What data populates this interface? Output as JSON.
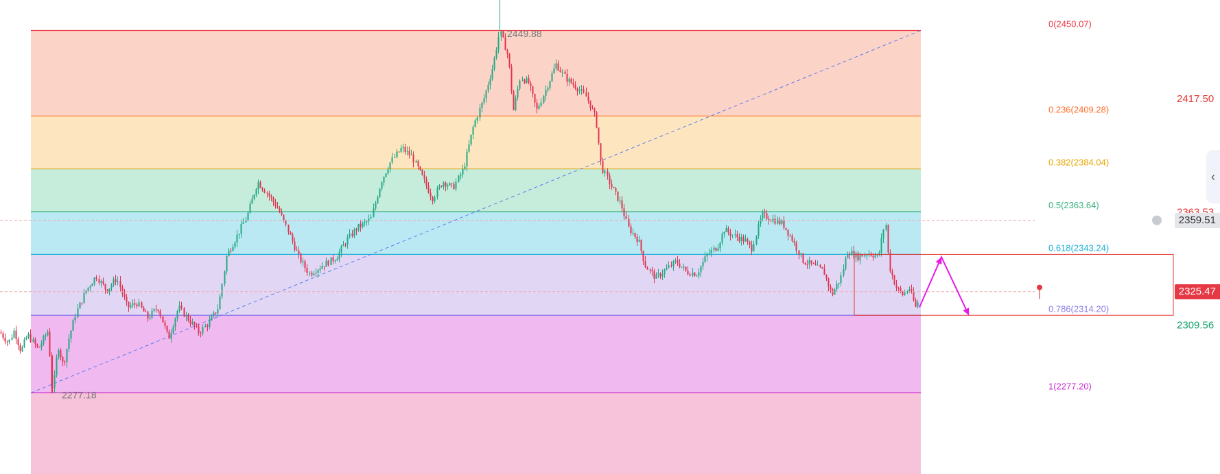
{
  "chart_data": {
    "type": "candlestick",
    "ylim": [
      2266.3,
      2462.8
    ],
    "fib_levels": [
      {
        "ratio_label": "0",
        "price": 2450.07,
        "label": "0(2450.07)",
        "line": "#f23645",
        "fill": "#fcd3c7",
        "text": "#f23645"
      },
      {
        "ratio_label": "0.236",
        "price": 2409.28,
        "label": "0.236(2409.28)",
        "line": "#ff7b29",
        "fill": "#fde6bf",
        "text": "#ff6d2a"
      },
      {
        "ratio_label": "0.382",
        "price": 2384.04,
        "label": "0.382(2384.04)",
        "line": "#e0a919",
        "fill": "#c6ecdb",
        "text": "#e6a700"
      },
      {
        "ratio_label": "0.5",
        "price": 2363.64,
        "label": "0.5(2363.64)",
        "line": "#3bb27d",
        "fill": "#bbe9f3",
        "text": "#3bb27d"
      },
      {
        "ratio_label": "0.618",
        "price": 2343.24,
        "label": "0.618(2343.24)",
        "line": "#22b3d5",
        "fill": "#e1d6f4",
        "text": "#1fb1d6"
      },
      {
        "ratio_label": "0.786",
        "price": 2314.2,
        "label": "0.786(2314.20)",
        "line": "#7f72e8",
        "fill": "#f0b9ef",
        "text": "#8c7fe6"
      },
      {
        "ratio_label": "1",
        "price": 2277.2,
        "label": "1(2277.20)",
        "line": "#cc2fd0",
        "fill": "#f6c3da",
        "text": "#cc2fd0"
      }
    ],
    "high_label": "2449.88",
    "low_label": "2277.18",
    "high_price": 2449.88,
    "low_price": 2277.18,
    "trend_line": {
      "from_price": 2277.2,
      "to_price": 2450.07,
      "color": "#5b7cf0"
    },
    "candle_colors": {
      "up": "#22a884",
      "down": "#e0344f"
    },
    "close_path": [
      [
        0,
        2306
      ],
      [
        12,
        2301
      ],
      [
        20,
        2307
      ],
      [
        30,
        2297
      ],
      [
        40,
        2305
      ],
      [
        55,
        2298
      ],
      [
        70,
        2307
      ],
      [
        76,
        2277.18
      ],
      [
        84,
        2300
      ],
      [
        92,
        2290
      ],
      [
        100,
        2303
      ],
      [
        110,
        2315
      ],
      [
        125,
        2326
      ],
      [
        140,
        2333
      ],
      [
        155,
        2326
      ],
      [
        170,
        2332
      ],
      [
        185,
        2318
      ],
      [
        200,
        2320
      ],
      [
        215,
        2313
      ],
      [
        230,
        2318
      ],
      [
        245,
        2303
      ],
      [
        260,
        2318
      ],
      [
        275,
        2312
      ],
      [
        290,
        2306
      ],
      [
        305,
        2311
      ],
      [
        318,
        2318
      ],
      [
        330,
        2343
      ],
      [
        345,
        2352
      ],
      [
        360,
        2362
      ],
      [
        375,
        2378
      ],
      [
        390,
        2372
      ],
      [
        405,
        2365
      ],
      [
        420,
        2354
      ],
      [
        435,
        2342
      ],
      [
        450,
        2334
      ],
      [
        470,
        2338
      ],
      [
        490,
        2342
      ],
      [
        505,
        2350
      ],
      [
        520,
        2356
      ],
      [
        540,
        2360
      ],
      [
        555,
        2378
      ],
      [
        568,
        2387
      ],
      [
        585,
        2394
      ],
      [
        600,
        2390
      ],
      [
        615,
        2380
      ],
      [
        630,
        2370
      ],
      [
        645,
        2378
      ],
      [
        660,
        2375
      ],
      [
        675,
        2384
      ],
      [
        690,
        2405
      ],
      [
        705,
        2418
      ],
      [
        718,
        2433
      ],
      [
        728,
        2449.88
      ],
      [
        740,
        2438
      ],
      [
        748,
        2412
      ],
      [
        758,
        2428
      ],
      [
        770,
        2425
      ],
      [
        782,
        2412
      ],
      [
        795,
        2422
      ],
      [
        810,
        2434
      ],
      [
        825,
        2427
      ],
      [
        840,
        2423
      ],
      [
        855,
        2418
      ],
      [
        868,
        2408
      ],
      [
        876,
        2385
      ],
      [
        890,
        2376
      ],
      [
        905,
        2367
      ],
      [
        915,
        2356
      ],
      [
        930,
        2350
      ],
      [
        940,
        2338
      ],
      [
        955,
        2332
      ],
      [
        970,
        2336
      ],
      [
        985,
        2340
      ],
      [
        1000,
        2335
      ],
      [
        1015,
        2334
      ],
      [
        1030,
        2343
      ],
      [
        1045,
        2347
      ],
      [
        1055,
        2355
      ],
      [
        1070,
        2352
      ],
      [
        1085,
        2350
      ],
      [
        1095,
        2346
      ],
      [
        1110,
        2362
      ],
      [
        1125,
        2360
      ],
      [
        1140,
        2358
      ],
      [
        1155,
        2350
      ],
      [
        1170,
        2340
      ],
      [
        1185,
        2338
      ],
      [
        1200,
        2335
      ],
      [
        1212,
        2324
      ],
      [
        1225,
        2332
      ],
      [
        1235,
        2345
      ],
      [
        1250,
        2342
      ],
      [
        1265,
        2344
      ],
      [
        1280,
        2342
      ],
      [
        1290,
        2360
      ],
      [
        1295,
        2338
      ],
      [
        1305,
        2328
      ],
      [
        1315,
        2324
      ],
      [
        1325,
        2327
      ],
      [
        1335,
        2317
      ],
      [
        1340,
        2325.47
      ]
    ],
    "projection": {
      "color": "#e91ae5",
      "points": [
        [
          1340,
          2318
        ],
        [
          1372,
          2342
        ],
        [
          1412,
          2314.2
        ]
      ]
    },
    "target_box": {
      "from_x": 1245,
      "top_price": 2343.24,
      "bottom_price": 2314.2,
      "color": "#e53935"
    },
    "dashed_lines": [
      {
        "price": 2359.51,
        "color": "#f2a7ae"
      },
      {
        "price": 2325.47,
        "color": "#f2a7ae"
      }
    ],
    "axis_labels": [
      {
        "text": "2417.50",
        "price": 2417.5,
        "color": "#e53935"
      },
      {
        "text": "2363.53",
        "price": 2363.53,
        "color": "#e53935"
      },
      {
        "text": "2309.56",
        "price": 2309.56,
        "color": "#14a16a"
      }
    ],
    "price_badges": [
      {
        "text": "2359.51",
        "price": 2359.51,
        "bg": "#e4e6ea",
        "color": "#333333"
      },
      {
        "text": "2325.47",
        "price": 2325.47,
        "bg": "#e53945",
        "color": "#ffffff"
      }
    ]
  },
  "ui": {
    "collapse_icon": "chevron-left-icon",
    "collapse_glyph": "‹",
    "alert_icon": "alarm-clock-icon"
  }
}
